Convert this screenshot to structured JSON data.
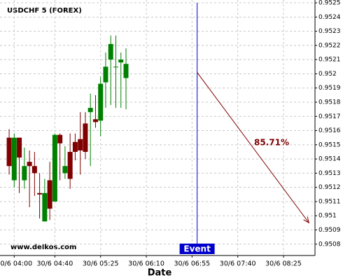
{
  "chart_data": {
    "type": "candlestick",
    "title": "USDCHF 5 (FOREX)",
    "x_label": "Date",
    "watermark": "www.delkos.com",
    "x": [
      "30/6 03:55",
      "30/6 04:00",
      "30/6 04:05",
      "30/6 04:10",
      "30/6 04:15",
      "30/6 04:20",
      "30/6 04:25",
      "30/6 04:30",
      "30/6 04:35",
      "30/6 04:40",
      "30/6 04:45",
      "30/6 04:50",
      "30/6 04:55",
      "30/6 05:00",
      "30/6 05:05",
      "30/6 05:10",
      "30/6 05:15",
      "30/6 05:20",
      "30/6 05:25",
      "30/6 05:30",
      "30/6 05:35",
      "30/6 05:40",
      "30/6 05:45",
      "30/6 05:50"
    ],
    "open": [
      0.95155,
      0.95125,
      0.95155,
      0.95125,
      0.95138,
      0.95135,
      0.95116,
      0.95096,
      0.95125,
      0.9511,
      0.95157,
      0.9513,
      0.95145,
      0.95152,
      0.95154,
      0.95165,
      0.95173,
      0.95168,
      0.95167,
      0.95194,
      0.9521,
      0.95205,
      0.95208,
      0.95197
    ],
    "high": [
      0.95161,
      0.95158,
      0.95155,
      0.95148,
      0.95146,
      0.95145,
      0.9513,
      0.95126,
      0.95138,
      0.95158,
      0.95158,
      0.95149,
      0.95158,
      0.95158,
      0.95173,
      0.95173,
      0.95186,
      0.95185,
      0.95198,
      0.95215,
      0.95227,
      0.95227,
      0.95215,
      0.95218
    ],
    "low": [
      0.95129,
      0.9512,
      0.95116,
      0.95119,
      0.95106,
      0.95114,
      0.95098,
      0.95096,
      0.95097,
      0.9511,
      0.95125,
      0.95126,
      0.95119,
      0.95139,
      0.95129,
      0.9514,
      0.95135,
      0.95162,
      0.95156,
      0.95176,
      0.95178,
      0.95176,
      0.95176,
      0.95175
    ],
    "close": [
      0.95135,
      0.95155,
      0.95141,
      0.95135,
      0.95135,
      0.9513,
      0.95115,
      0.95116,
      0.95105,
      0.95157,
      0.95151,
      0.95135,
      0.95126,
      0.95145,
      0.95146,
      0.95145,
      0.95176,
      0.95166,
      0.95193,
      0.95205,
      0.95221,
      0.95205,
      0.9521,
      0.95207
    ],
    "up_color": "#008000",
    "down_color": "#800000",
    "xlim": [
      "30/6 03:46",
      "30/6 08:56"
    ],
    "xticks": [
      "30/6 04:00",
      "30/6 04:40",
      "30/6 05:25",
      "30/6 06:10",
      "30/6 06:55",
      "30/6 07:40",
      "30/6 08:25"
    ],
    "ylim": [
      0.95072,
      0.95252
    ],
    "yticks": [
      0.9508,
      0.9509,
      0.951,
      0.9511,
      0.9512,
      0.9513,
      0.9514,
      0.9515,
      0.9516,
      0.9517,
      0.9518,
      0.9519,
      0.952,
      0.9521,
      0.9522,
      0.9523,
      0.9524,
      0.9525
    ],
    "grid": true,
    "event": {
      "label": "Event",
      "x": "30/6 07:00",
      "color": "#0000cc"
    },
    "forecast": {
      "label": "85.71%",
      "x": [
        "30/6 07:00",
        "30/6 08:50"
      ],
      "y": [
        0.95201,
        0.95095
      ],
      "color": "#800000"
    }
  }
}
